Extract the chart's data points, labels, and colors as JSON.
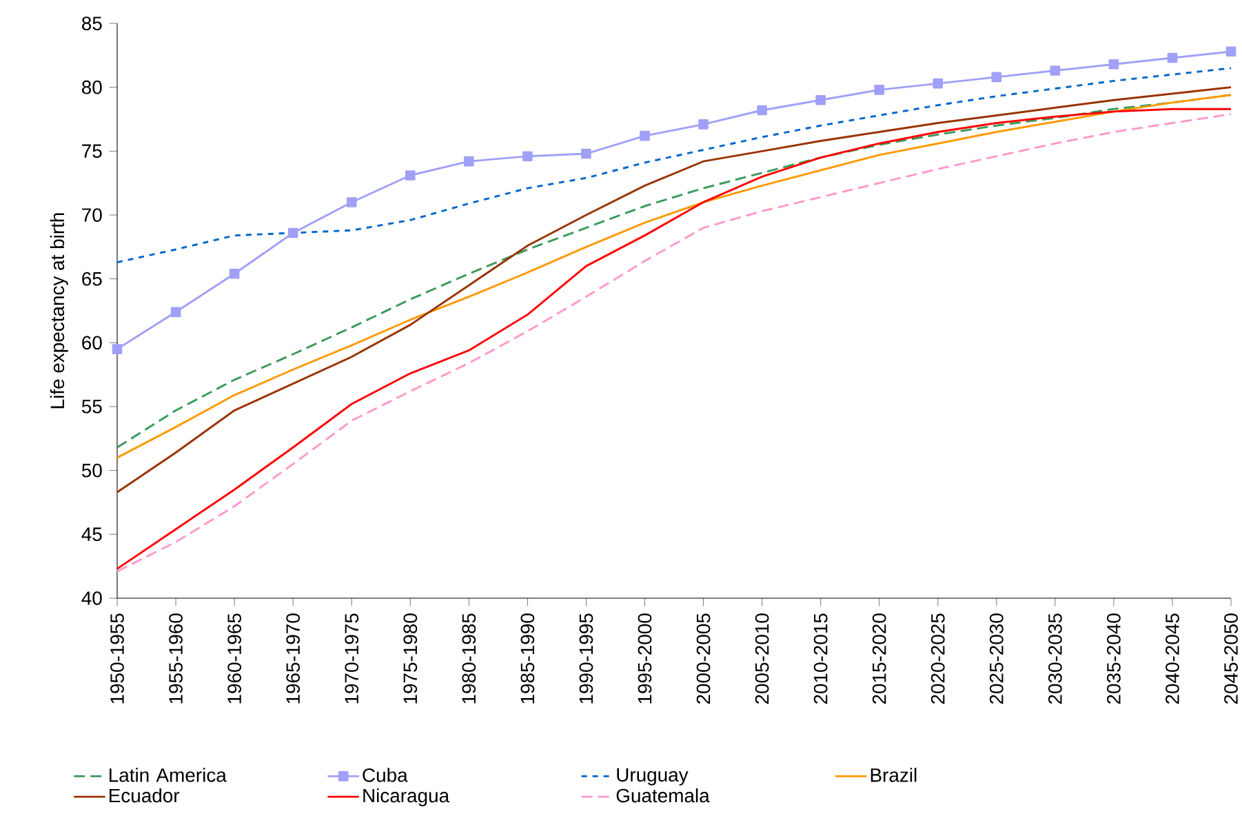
{
  "chart_data": {
    "type": "line",
    "ylabel": "Life expectancy at birth",
    "categories": [
      "1950-1955",
      "1955-1960",
      "1960-1965",
      "1965-1970",
      "1970-1975",
      "1975-1980",
      "1980-1985",
      "1985-1990",
      "1990-1995",
      "1995-2000",
      "2000-2005",
      "2005-2010",
      "2010-2015",
      "2015-2020",
      "2020-2025",
      "2025-2030",
      "2030-2035",
      "2035-2040",
      "2040-2045",
      "2045-2050"
    ],
    "ylim": [
      40,
      85
    ],
    "yticks": [
      40,
      45,
      50,
      55,
      60,
      65,
      70,
      75,
      80,
      85
    ],
    "grid": false,
    "legend": "bottom",
    "marker": "none",
    "series": [
      {
        "name": "Latin America",
        "color": "#3a9a5b",
        "line_style": "dashed",
        "values": [
          51.8,
          54.7,
          57.1,
          59.1,
          61.2,
          63.4,
          65.4,
          67.3,
          69.0,
          70.7,
          72.1,
          73.3,
          74.5,
          75.5,
          76.3,
          77.0,
          77.6,
          78.3,
          78.8,
          79.4
        ]
      },
      {
        "name": "Cuba",
        "color": "#a0a0f8",
        "marker": "square",
        "line_style": "solid",
        "values": [
          59.5,
          62.4,
          65.4,
          68.6,
          71.0,
          73.1,
          74.2,
          74.6,
          74.8,
          76.2,
          77.1,
          78.2,
          79.0,
          79.8,
          80.3,
          80.8,
          81.3,
          81.8,
          82.3,
          82.8
        ]
      },
      {
        "name": "Uruguay",
        "color": "#0066cc",
        "line_style": "dotted",
        "values": [
          66.3,
          67.3,
          68.4,
          68.6,
          68.8,
          69.6,
          70.9,
          72.1,
          72.9,
          74.1,
          75.1,
          76.1,
          77.0,
          77.8,
          78.6,
          79.3,
          79.9,
          80.5,
          81.0,
          81.5
        ]
      },
      {
        "name": "Brazil",
        "color": "#ff9900",
        "line_style": "solid",
        "values": [
          51.0,
          53.4,
          55.9,
          57.9,
          59.8,
          61.8,
          63.6,
          65.5,
          67.5,
          69.4,
          71.0,
          72.3,
          73.5,
          74.7,
          75.6,
          76.5,
          77.3,
          78.1,
          78.8,
          79.4
        ]
      },
      {
        "name": "Ecuador",
        "color": "#993300",
        "line_style": "solid",
        "values": [
          48.3,
          51.4,
          54.7,
          56.8,
          58.9,
          61.4,
          64.5,
          67.6,
          70.0,
          72.3,
          74.2,
          75.0,
          75.8,
          76.5,
          77.2,
          77.8,
          78.4,
          79.0,
          79.5,
          80.0
        ]
      },
      {
        "name": "Nicaragua",
        "color": "#ff0000",
        "line_style": "solid",
        "values": [
          42.3,
          45.4,
          48.5,
          51.8,
          55.2,
          57.6,
          59.4,
          62.2,
          66.0,
          68.4,
          71.0,
          73.0,
          74.5,
          75.6,
          76.5,
          77.2,
          77.7,
          78.1,
          78.3,
          78.3
        ]
      },
      {
        "name": "Guatemala",
        "color": "#ff99cc",
        "line_style": "dashed",
        "values": [
          42.1,
          44.4,
          47.2,
          50.5,
          53.9,
          56.2,
          58.4,
          60.9,
          63.6,
          66.4,
          69.0,
          70.3,
          71.4,
          72.5,
          73.6,
          74.6,
          75.6,
          76.5,
          77.2,
          77.9
        ]
      }
    ]
  }
}
